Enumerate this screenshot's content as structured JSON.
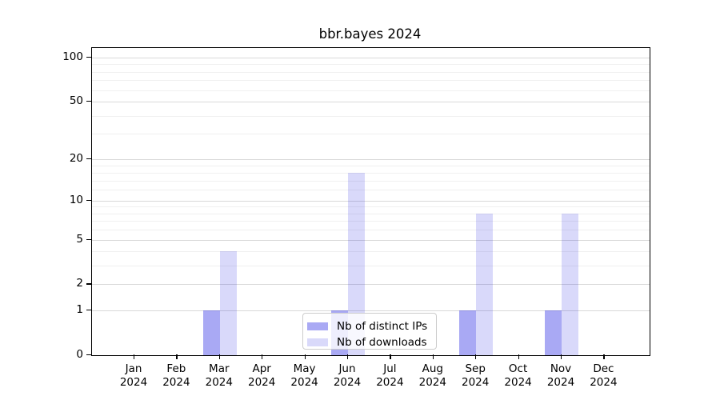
{
  "title": "bbr.bayes 2024",
  "chart_data": {
    "type": "bar",
    "title": "bbr.bayes 2024",
    "categories": [
      "Jan",
      "Feb",
      "Mar",
      "Apr",
      "May",
      "Jun",
      "Jul",
      "Aug",
      "Sep",
      "Oct",
      "Nov",
      "Dec"
    ],
    "category_year": "2024",
    "series": [
      {
        "name": "Nb of distinct IPs",
        "color": "rgba(10,10,224,0.35)",
        "values": [
          0,
          0,
          1,
          0,
          0,
          1,
          0,
          0,
          1,
          0,
          1,
          0
        ]
      },
      {
        "name": "Nb of downloads",
        "color": "rgba(10,10,224,0.155)",
        "values": [
          0,
          0,
          4,
          0,
          0,
          16,
          0,
          0,
          8,
          0,
          8,
          0
        ]
      }
    ],
    "yscale": "log10(value+1)",
    "ylim": [
      0,
      116
    ],
    "yticks": [
      0,
      1,
      2,
      5,
      10,
      20,
      50,
      100
    ],
    "yticks_minor": [
      3,
      4,
      6,
      7,
      8,
      9,
      12,
      14,
      16,
      18,
      30,
      40,
      60,
      70,
      80,
      90
    ],
    "xlabel": "",
    "ylabel": "",
    "grid": "horizontal",
    "legend_position": "lower center",
    "colors": {
      "grid_major": "#d9d9d9",
      "grid_minor": "#f0f0f0",
      "axis": "#000000",
      "text": "#000000",
      "background": "#ffffff"
    }
  }
}
